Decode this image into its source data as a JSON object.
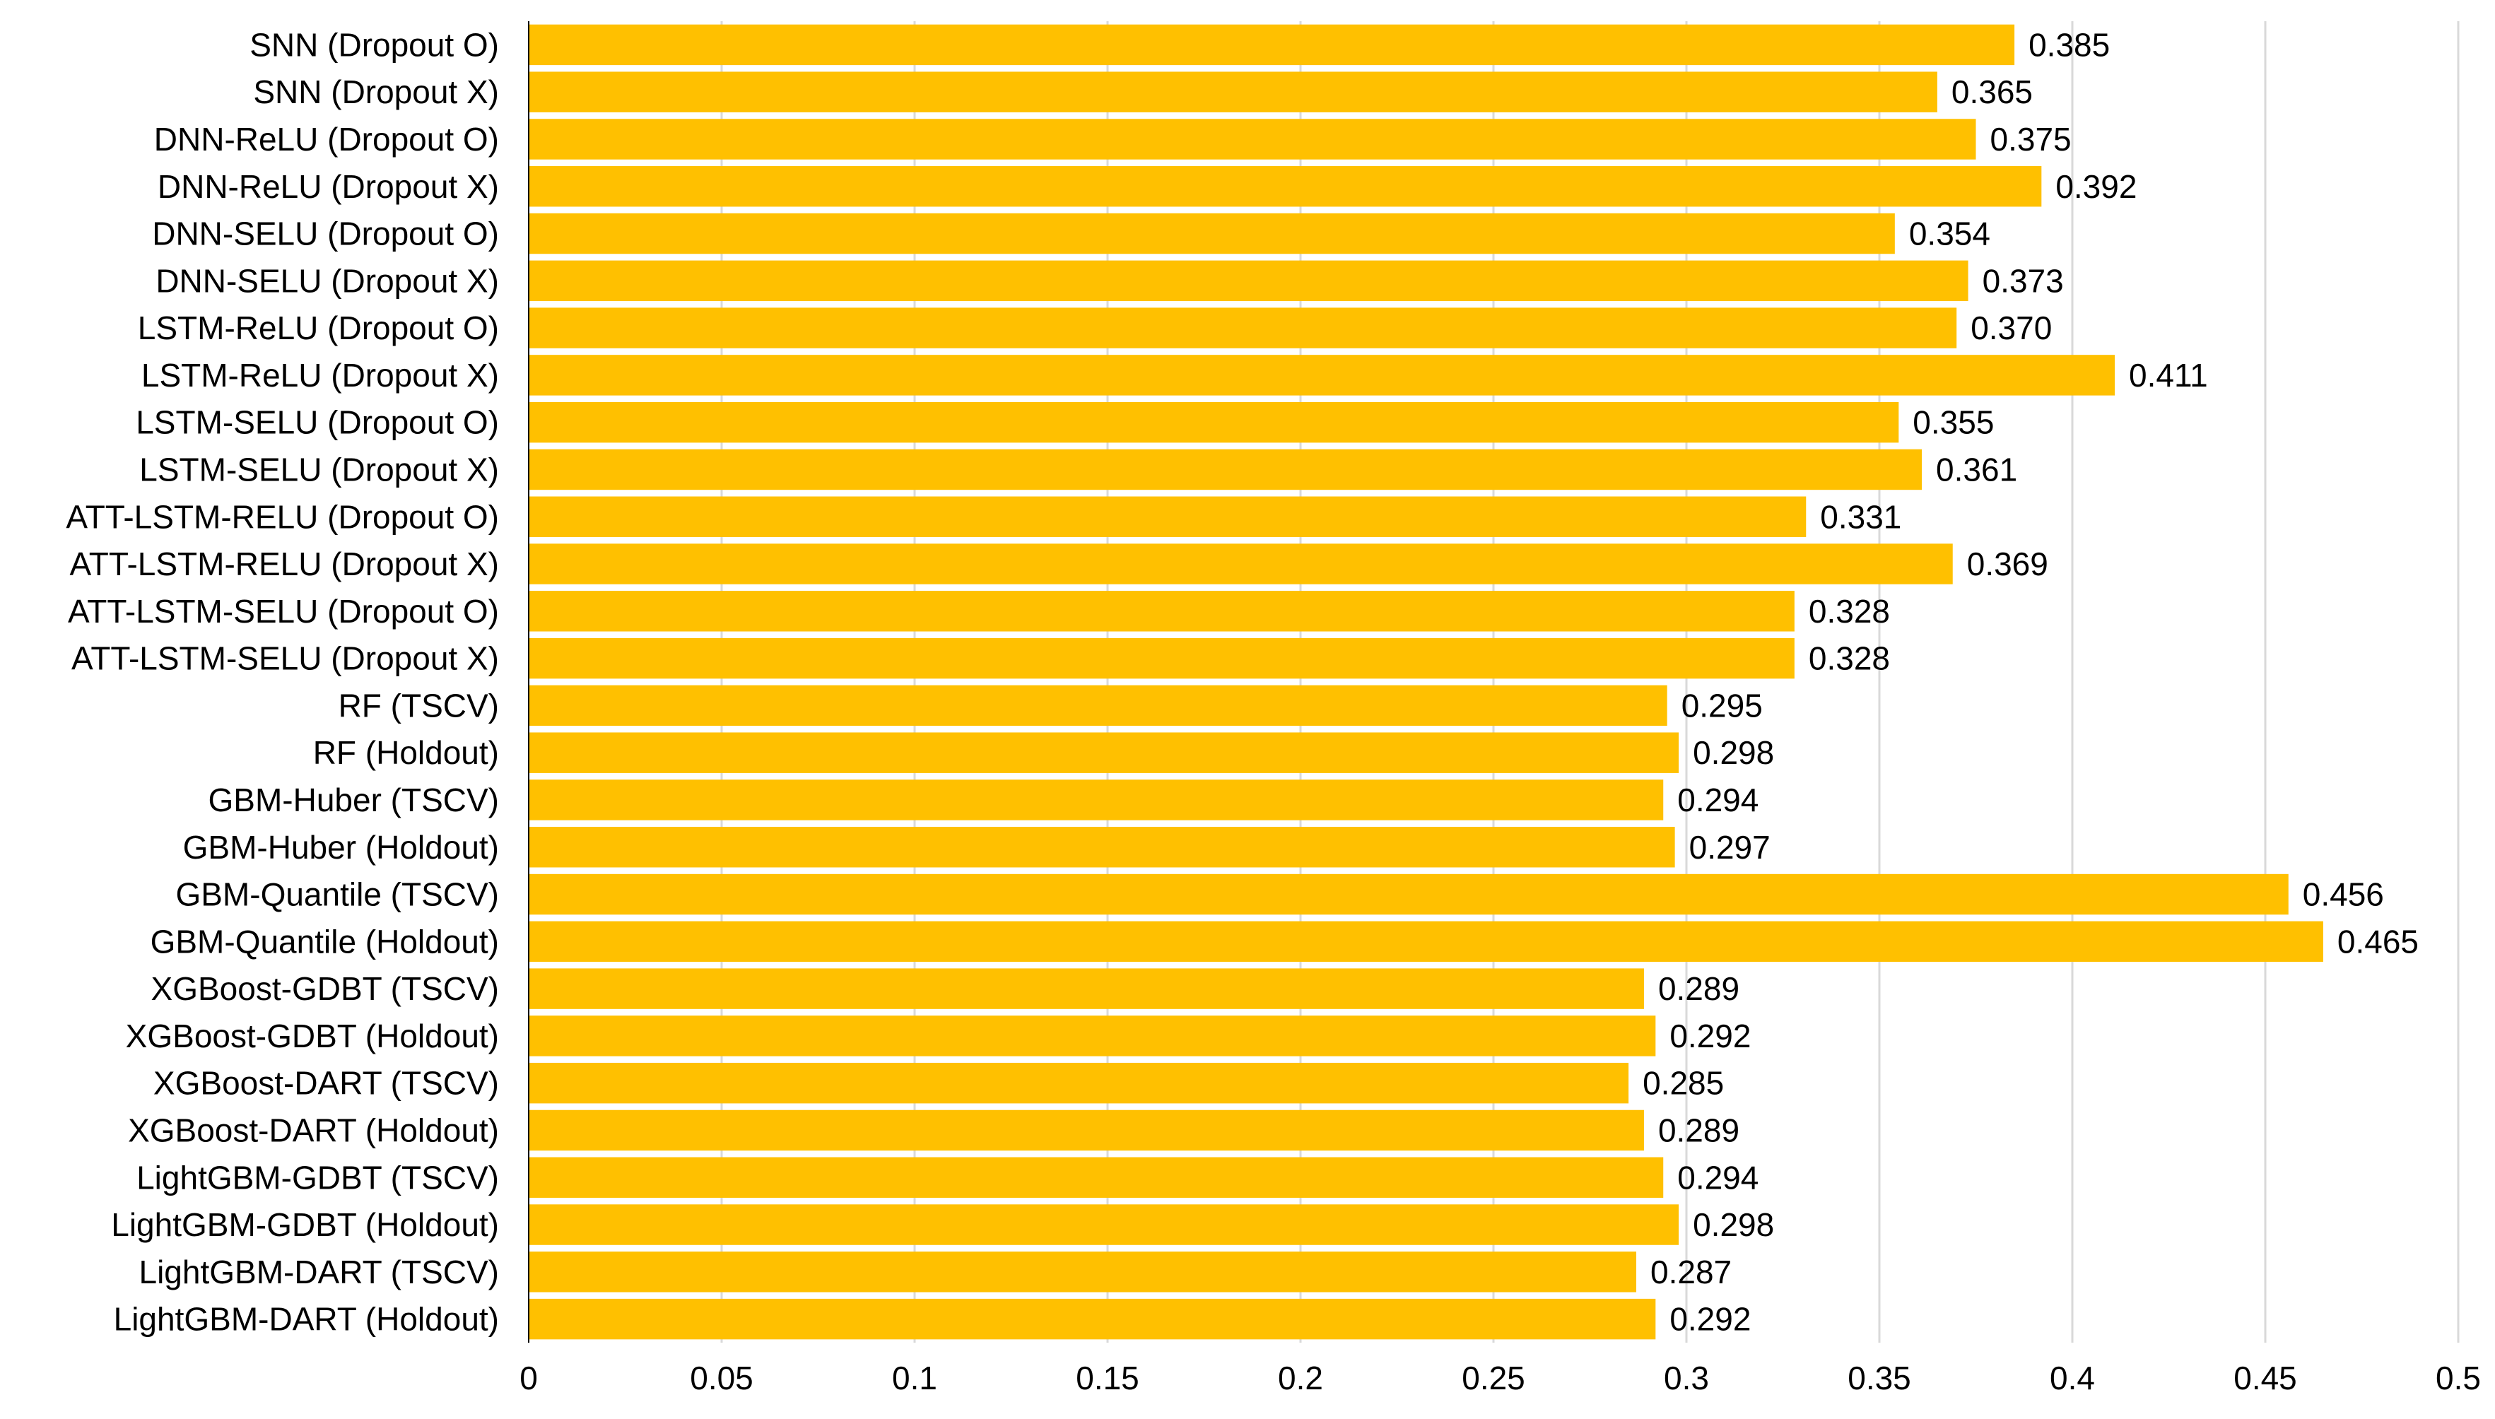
{
  "chart_data": {
    "type": "bar",
    "orientation": "horizontal",
    "title": "",
    "xlabel": "",
    "ylabel": "",
    "xlim": [
      0,
      0.5
    ],
    "ticks": [
      0,
      0.05,
      0.1,
      0.15,
      0.2,
      0.25,
      0.3,
      0.35,
      0.4,
      0.45,
      0.5
    ],
    "tick_labels": [
      "0",
      "0.05",
      "0.1",
      "0.15",
      "0.2",
      "0.25",
      "0.3",
      "0.35",
      "0.4",
      "0.45",
      "0.5"
    ],
    "grid": true,
    "bar_color": "#FFC000",
    "categories": [
      "SNN (Dropout O)",
      "SNN (Dropout X)",
      "DNN-ReLU (Dropout O)",
      "DNN-ReLU (Dropout X)",
      "DNN-SELU (Dropout O)",
      "DNN-SELU (Dropout X)",
      "LSTM-ReLU (Dropout O)",
      "LSTM-ReLU (Dropout X)",
      "LSTM-SELU (Dropout O)",
      "LSTM-SELU (Dropout X)",
      "ATT-LSTM-RELU (Dropout O)",
      "ATT-LSTM-RELU (Dropout X)",
      "ATT-LSTM-SELU (Dropout O)",
      "ATT-LSTM-SELU (Dropout X)",
      "RF (TSCV)",
      "RF (Holdout)",
      "GBM-Huber (TSCV)",
      "GBM-Huber (Holdout)",
      "GBM-Quantile (TSCV)",
      "GBM-Quantile (Holdout)",
      "XGBoost-GDBT (TSCV)",
      "XGBoost-GDBT (Holdout)",
      "XGBoost-DART (TSCV)",
      "XGBoost-DART (Holdout)",
      "LightGBM-GDBT (TSCV)",
      "LightGBM-GDBT (Holdout)",
      "LightGBM-DART (TSCV)",
      "LightGBM-DART (Holdout)"
    ],
    "values": [
      0.385,
      0.365,
      0.375,
      0.392,
      0.354,
      0.373,
      0.37,
      0.411,
      0.355,
      0.361,
      0.331,
      0.369,
      0.328,
      0.328,
      0.295,
      0.298,
      0.294,
      0.297,
      0.456,
      0.465,
      0.289,
      0.292,
      0.285,
      0.289,
      0.294,
      0.298,
      0.287,
      0.292
    ],
    "value_labels": [
      "0.385",
      "0.365",
      "0.375",
      "0.392",
      "0.354",
      "0.373",
      "0.370",
      "0.411",
      "0.355",
      "0.361",
      "0.331",
      "0.369",
      "0.328",
      "0.328",
      "0.295",
      "0.298",
      "0.294",
      "0.297",
      "0.456",
      "0.465",
      "0.289",
      "0.292",
      "0.285",
      "0.289",
      "0.294",
      "0.298",
      "0.287",
      "0.292"
    ]
  }
}
